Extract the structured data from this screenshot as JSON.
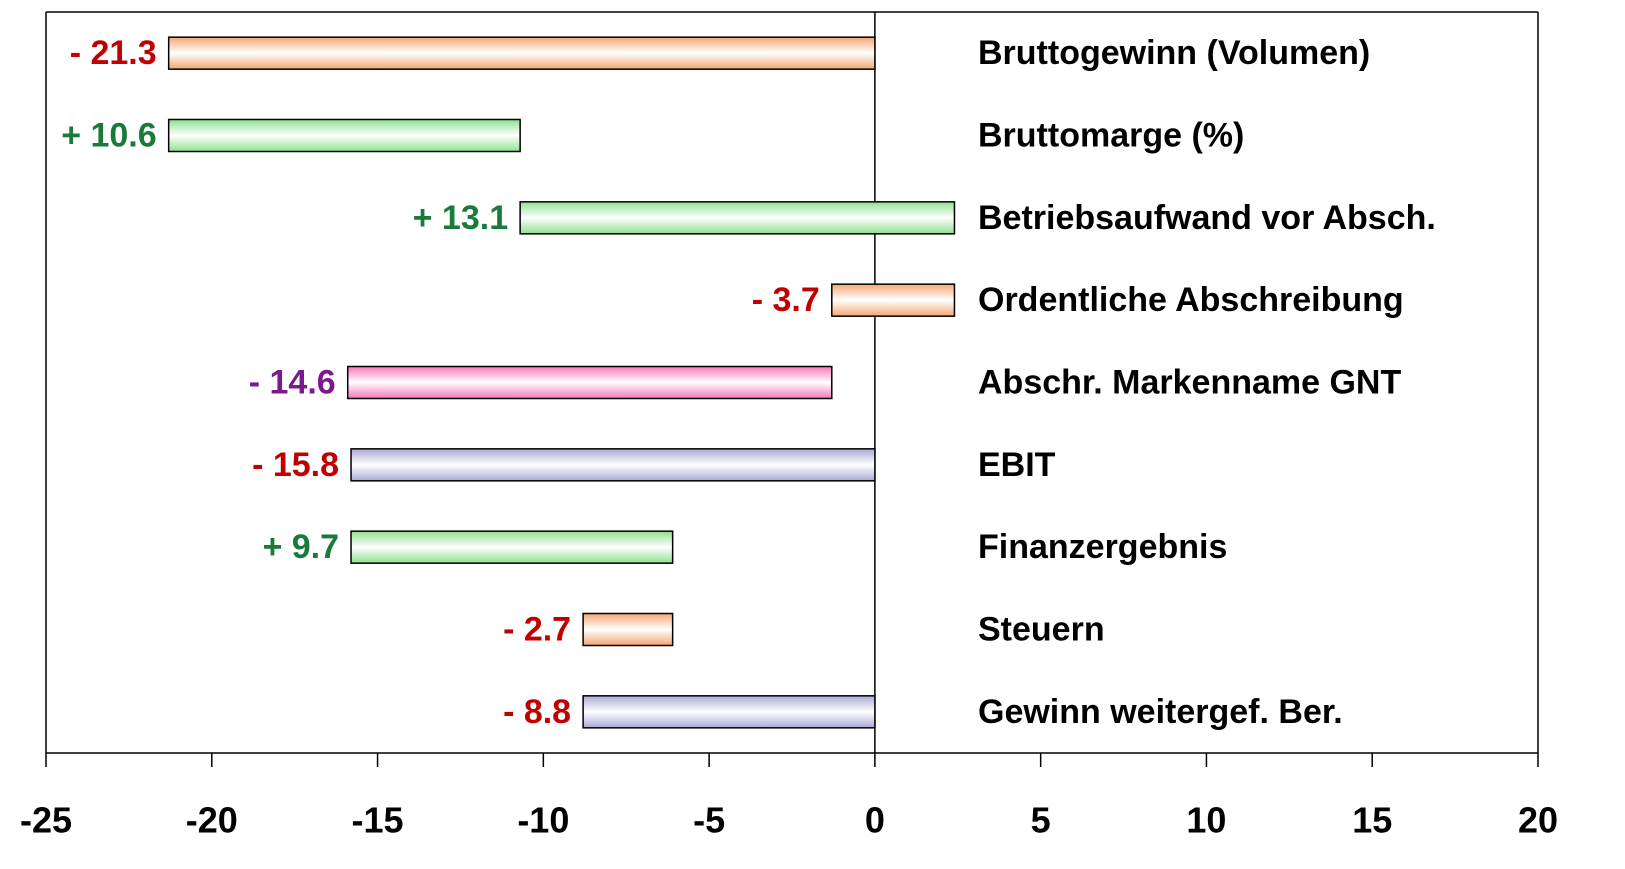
{
  "chart_data": {
    "type": "waterfall",
    "orientation": "horizontal",
    "categories": [
      "Bruttogewinn (Volumen)",
      "Bruttomarge (%)",
      "Betriebsaufwand vor Absch.",
      "Ordentliche Abschreibung",
      "Abschr. Markenname GNT",
      "EBIT",
      "Finanzergebnis",
      "Steuern",
      "Gewinn weitergef. Ber."
    ],
    "values": [
      -21.3,
      10.6,
      13.1,
      -3.7,
      -14.6,
      -15.8,
      9.7,
      -2.7,
      -8.8
    ],
    "value_labels": [
      "- 21.3",
      "+ 10.6",
      "+ 13.1",
      "- 3.7",
      "- 14.6",
      "- 15.8",
      "+ 9.7",
      "- 2.7",
      "- 8.8"
    ],
    "totals": [
      false,
      false,
      false,
      false,
      false,
      true,
      false,
      false,
      true
    ],
    "colors": [
      "#f4a673",
      "#8fe08f",
      "#8fe08f",
      "#f4a673",
      "#f576b8",
      "#a9a9d6",
      "#8fe08f",
      "#f4a673",
      "#a9a9d6"
    ],
    "label_colors": [
      "#c00000",
      "#1a7a3a",
      "#1a7a3a",
      "#c00000",
      "#7a1a8c",
      "#c00000",
      "#1a7a3a",
      "#c00000",
      "#c00000"
    ],
    "xlim": [
      -25,
      20
    ],
    "xticks": [
      -25,
      -20,
      -15,
      -10,
      -5,
      0,
      5,
      10,
      15,
      20
    ]
  }
}
